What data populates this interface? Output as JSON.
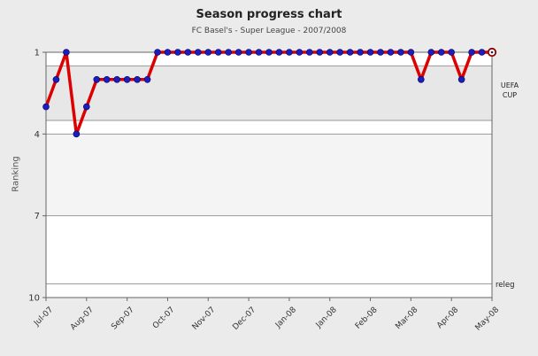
{
  "header": {
    "title": "Season progress chart",
    "subtitle": "FC Basel's - Super League - 2007/2008"
  },
  "right_labels": {
    "uefa_cup": "UEFA CUP",
    "releg": "releg"
  },
  "chart_data": {
    "type": "line",
    "title": "Season progress chart",
    "subtitle": "FC Basel's - Super League - 2007/2008",
    "ylabel": "Ranking",
    "y_inverted": true,
    "ylim": [
      1,
      10
    ],
    "yticks": [
      1,
      4,
      7,
      10
    ],
    "x_count": 45,
    "x_unit": "week",
    "xtick_weeks": [
      1,
      5,
      9,
      13,
      17,
      21,
      25,
      29,
      33,
      37,
      41,
      45
    ],
    "xtick_labels": [
      "Jul-07",
      "Aug-07",
      "Sep-07",
      "Oct-07",
      "Nov-07",
      "Dec-07",
      "Jan-08",
      "Jan-08",
      "Feb-08",
      "Mar-08",
      "Apr-08",
      "May-08"
    ],
    "series": [
      {
        "name": "FC Basel ranking",
        "values": [
          3,
          2,
          1,
          4,
          3,
          2,
          2,
          2,
          2,
          2,
          2,
          1,
          1,
          1,
          1,
          1,
          1,
          1,
          1,
          1,
          1,
          1,
          1,
          1,
          1,
          1,
          1,
          1,
          1,
          1,
          1,
          1,
          1,
          1,
          1,
          1,
          1,
          2,
          1,
          1,
          1,
          2,
          1,
          1,
          1
        ]
      }
    ],
    "final_marker": "open-ring",
    "zones": [
      {
        "name": "uefa-cup-band",
        "label": "UEFA CUP",
        "from": 1.5,
        "to": 3.5,
        "color": "#e7e7e7"
      },
      {
        "name": "mid-band",
        "label": "",
        "from": 4,
        "to": 7,
        "color": "#f4f4f4"
      }
    ],
    "guide_lines": [
      1.5,
      3.5,
      4,
      7,
      9.5
    ],
    "relegation_line": 9.5,
    "grid": "horizontal-only",
    "legend": "none",
    "colors": {
      "page_bg": "#ebebeb",
      "plot_bg": "#ffffff",
      "line": "#dd0000",
      "marker": "#1d1dbb",
      "marker_stroke": "#000066",
      "final_ring": "#8b0000",
      "grid_line": "#9a9a9a",
      "border": "#666666",
      "tick_text": "#333333"
    }
  }
}
